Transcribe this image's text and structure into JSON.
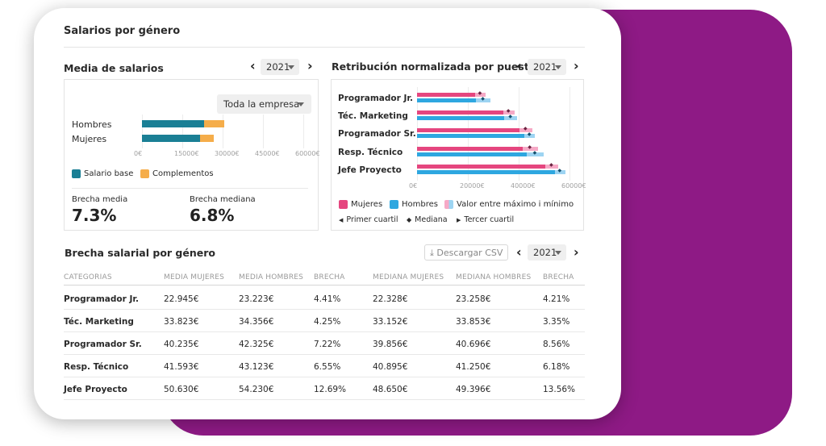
{
  "card": {
    "title": "Salarios por género"
  },
  "media": {
    "title": "Media de salarios",
    "year": "2021",
    "scope": "Toda la empresa",
    "rows": [
      {
        "label": "Hombres",
        "base": 23000,
        "complementos": 7500
      },
      {
        "label": "Mujeres",
        "base": 21500,
        "complementos": 5200
      }
    ],
    "ticks": [
      "0€",
      "15000€",
      "30000€",
      "45000€",
      "60000€"
    ],
    "legend": [
      {
        "label": "Salario base",
        "color": "#1a7f95"
      },
      {
        "label": "Complementos",
        "color": "#f5ad4a"
      }
    ],
    "brecha_media_label": "Brecha media",
    "brecha_media_value": "7.3%",
    "brecha_mediana_label": "Brecha mediana",
    "brecha_mediana_value": "6.8%"
  },
  "retribucion": {
    "title": "Retribución normalizada por puestos",
    "year": "2021",
    "ticks": [
      "0€",
      "20000€",
      "40000€",
      "60000€"
    ],
    "rows": [
      {
        "label": "Programador Jr.",
        "mujeres": 22945,
        "hombres": 23223,
        "mujeres_max": 27000,
        "hombres_max": 29000
      },
      {
        "label": "Téc. Marketing",
        "mujeres": 33823,
        "hombres": 34356,
        "mujeres_max": 38500,
        "hombres_max": 39500
      },
      {
        "label": "Programador Sr.",
        "mujeres": 40235,
        "hombres": 42325,
        "mujeres_max": 45500,
        "hombres_max": 46500
      },
      {
        "label": "Resp. Técnico",
        "mujeres": 41593,
        "hombres": 43123,
        "mujeres_max": 47500,
        "hombres_max": 50000
      },
      {
        "label": "Jefe Proyecto",
        "mujeres": 50630,
        "hombres": 54230,
        "mujeres_max": 55500,
        "hombres_max": 58500
      }
    ],
    "legend": {
      "mujeres": "Mujeres",
      "hombres": "Hombres",
      "rango": "Valor entre máximo i mínimo",
      "q1": "Primer cuartil",
      "mediana": "Mediana",
      "q3": "Tercer cuartil"
    },
    "colors": {
      "mujeres": "#e5467f",
      "hombres": "#2ea7e0",
      "mujeres_light": "#f6a9c6",
      "hombres_light": "#9dd4f2"
    }
  },
  "brecha": {
    "title": "Brecha salarial por género",
    "csv_label": "Descargar CSV",
    "year": "2021",
    "headers": [
      "CATEGORIAS",
      "MEDIA MUJERES",
      "MEDIA HOMBRES",
      "BRECHA",
      "MEDIANA MUJERES",
      "MEDIANA HOMBRES",
      "BRECHA"
    ],
    "rows": [
      [
        "Programador Jr.",
        "22.945€",
        "23.223€",
        "4.41%",
        "22.328€",
        "23.258€",
        "4.21%"
      ],
      [
        "Téc. Marketing",
        "33.823€",
        "34.356€",
        "4.25%",
        "33.152€",
        "33.853€",
        "3.35%"
      ],
      [
        "Programador Sr.",
        "40.235€",
        "42.325€",
        "7.22%",
        "39.856€",
        "40.696€",
        "8.56%"
      ],
      [
        "Resp. Técnico",
        "41.593€",
        "43.123€",
        "6.55%",
        "40.895€",
        "41.250€",
        "6.18%"
      ],
      [
        "Jefe Proyecto",
        "50.630€",
        "54.230€",
        "12.69%",
        "48.650€",
        "49.396€",
        "13.56%"
      ]
    ]
  }
}
